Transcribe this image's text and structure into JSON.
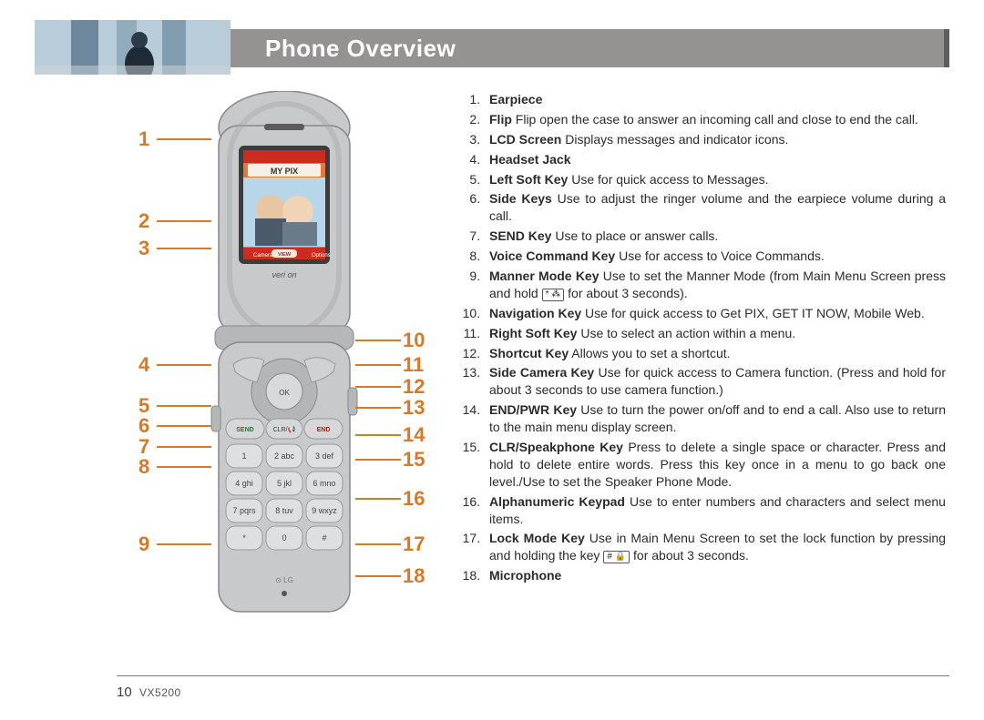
{
  "header": {
    "title": "Phone Overview",
    "bar_color": "#949392",
    "title_color": "#ffffff",
    "title_fontsize": 26
  },
  "diagram": {
    "callout_color": "#d47a2a",
    "callout_fontsize": 22,
    "left_numbers": [
      1,
      2,
      3,
      4,
      5,
      6,
      7,
      8,
      9
    ],
    "left_positions": [
      40,
      130,
      160,
      288,
      333,
      355,
      378,
      400,
      485
    ],
    "right_numbers": [
      10,
      11,
      12,
      13,
      14,
      15,
      16,
      17,
      18
    ],
    "right_positions": [
      261,
      288,
      312,
      335,
      365,
      392,
      435,
      485,
      520
    ],
    "phone_img_desc": "Silver flip phone open, showing LCD with two people photo, keypad below"
  },
  "items": [
    {
      "num": 1,
      "bold": "Earpiece",
      "text": ""
    },
    {
      "num": 2,
      "bold": "Flip",
      "text": " Flip open the case to answer an incoming call and close to end the call."
    },
    {
      "num": 3,
      "bold": "LCD Screen",
      "text": " Displays messages and indicator icons."
    },
    {
      "num": 4,
      "bold": "Headset Jack",
      "text": ""
    },
    {
      "num": 5,
      "bold": "Left Soft Key",
      "text": " Use for quick access to Messages."
    },
    {
      "num": 6,
      "bold": "Side Keys",
      "text": " Use to adjust the ringer volume and the earpiece volume during a call."
    },
    {
      "num": 7,
      "bold": "SEND Key",
      "text": " Use to place or answer calls."
    },
    {
      "num": 8,
      "bold": "Voice Command Key",
      "text": " Use for access to Voice Commands."
    },
    {
      "num": 9,
      "bold": "Manner Mode Key",
      "text": " Use to set the Manner Mode (from Main Menu Screen press and hold ",
      "key": "* ⁂",
      "text2": " for about 3 seconds)."
    },
    {
      "num": 10,
      "bold": "Navigation Key",
      "text": " Use for quick access to Get PIX, GET IT NOW, Mobile Web."
    },
    {
      "num": 11,
      "bold": "Right Soft Key",
      "text": " Use to select an action within a menu."
    },
    {
      "num": 12,
      "bold": "Shortcut Key",
      "text": " Allows you to set a shortcut."
    },
    {
      "num": 13,
      "bold": "Side Camera Key",
      "text": " Use for quick access to Camera function. (Press and hold for about 3 seconds to use camera function.)"
    },
    {
      "num": 14,
      "bold": "END/PWR Key",
      "text": " Use to turn the power on/off and to end a call. Also use to return to the main menu display screen."
    },
    {
      "num": 15,
      "bold": "CLR/Speakphone Key",
      "text": " Press to delete a single space or character. Press and hold to delete entire words. Press this key once in a menu to go back one level./Use to set the Speaker Phone Mode."
    },
    {
      "num": 16,
      "bold": "Alphanumeric Keypad",
      "text": " Use to enter numbers and characters and select menu items."
    },
    {
      "num": 17,
      "bold": "Lock Mode Key",
      "text": " Use in Main Menu Screen to set the lock function by pressing and holding the key ",
      "key": "# 🔒",
      "text2": " for about 3 seconds."
    },
    {
      "num": 18,
      "bold": "Microphone",
      "text": ""
    }
  ],
  "footer": {
    "page_number": "10",
    "model": "VX5200"
  }
}
